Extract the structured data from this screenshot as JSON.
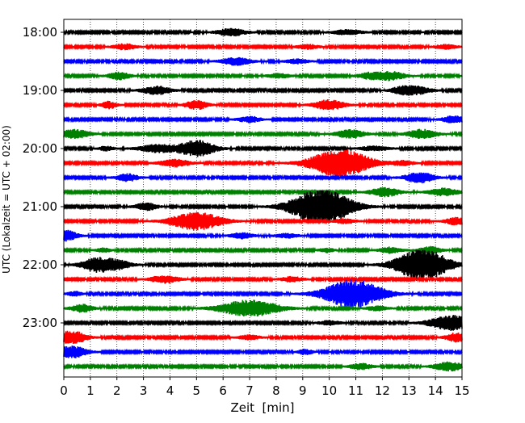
{
  "chart_data": {
    "type": "line",
    "title": "",
    "xlabel": "Zeit  [min]",
    "ylabel": "UTC (Lokalzeit = UTC + 02:00)",
    "xlim": [
      0,
      15
    ],
    "x_ticks": [
      "0",
      "1",
      "2",
      "3",
      "4",
      "5",
      "6",
      "7",
      "8",
      "9",
      "10",
      "11",
      "12",
      "13",
      "14",
      "15"
    ],
    "y_tick_labels": [
      "18:00",
      "19:00",
      "20:00",
      "21:00",
      "22:00",
      "23:00"
    ],
    "trace_interval_min": 15,
    "grid": {
      "x": true,
      "y": false
    },
    "trace_colors": [
      "#000000",
      "#ff0000",
      "#0000ff",
      "#008000"
    ],
    "traces": [
      {
        "start": "18:00",
        "bursts": [
          [
            6.3,
            0.4,
            0.5
          ],
          [
            10.7,
            0.4,
            0.35
          ]
        ]
      },
      {
        "start": "18:15",
        "bursts": [
          [
            2.3,
            0.3,
            0.4
          ],
          [
            9.2,
            0.3,
            0.3
          ],
          [
            14.4,
            0.3,
            0.3
          ]
        ]
      },
      {
        "start": "18:30",
        "bursts": [
          [
            6.5,
            0.4,
            0.5
          ],
          [
            8.8,
            0.3,
            0.3
          ]
        ]
      },
      {
        "start": "18:45",
        "bursts": [
          [
            2.1,
            0.3,
            0.5
          ],
          [
            8.1,
            0.3,
            0.3
          ],
          [
            11.5,
            0.3,
            0.4
          ],
          [
            12.3,
            0.4,
            0.6
          ]
        ]
      },
      {
        "start": "19:00",
        "bursts": [
          [
            3.5,
            0.4,
            0.55
          ],
          [
            12.7,
            0.3,
            0.4
          ],
          [
            13.3,
            0.4,
            0.5
          ]
        ]
      },
      {
        "start": "19:15",
        "bursts": [
          [
            1.7,
            0.2,
            0.5
          ],
          [
            5.0,
            0.3,
            0.6
          ],
          [
            10.0,
            0.4,
            0.7
          ]
        ]
      },
      {
        "start": "19:30",
        "bursts": [
          [
            7.0,
            0.3,
            0.4
          ],
          [
            14.7,
            0.3,
            0.5
          ]
        ]
      },
      {
        "start": "19:45",
        "bursts": [
          [
            0.4,
            0.4,
            0.6
          ],
          [
            10.8,
            0.4,
            0.55
          ],
          [
            13.5,
            0.4,
            0.6
          ]
        ]
      },
      {
        "start": "20:00",
        "bursts": [
          [
            1.6,
            0.2,
            0.3
          ],
          [
            3.5,
            0.5,
            0.5
          ],
          [
            5.0,
            0.5,
            1.1
          ],
          [
            11.7,
            0.4,
            0.3
          ]
        ]
      },
      {
        "start": "20:15",
        "bursts": [
          [
            4.2,
            0.4,
            0.5
          ],
          [
            10.4,
            0.8,
            1.9
          ],
          [
            12.8,
            0.3,
            0.3
          ]
        ]
      },
      {
        "start": "20:30",
        "bursts": [
          [
            2.4,
            0.3,
            0.5
          ],
          [
            13.4,
            0.4,
            0.7
          ]
        ]
      },
      {
        "start": "20:45",
        "bursts": [
          [
            12.1,
            0.4,
            0.6
          ],
          [
            14.3,
            0.4,
            0.5
          ]
        ]
      },
      {
        "start": "21:00",
        "bursts": [
          [
            3.1,
            0.3,
            0.5
          ],
          [
            9.7,
            0.8,
            2.5
          ]
        ]
      },
      {
        "start": "21:15",
        "bursts": [
          [
            5.0,
            0.7,
            1.2
          ],
          [
            10.6,
            0.3,
            0.3
          ],
          [
            14.8,
            0.3,
            0.5
          ]
        ]
      },
      {
        "start": "21:30",
        "bursts": [
          [
            0.1,
            0.3,
            0.7
          ],
          [
            6.7,
            0.3,
            0.4
          ],
          [
            8.4,
            0.3,
            0.3
          ]
        ]
      },
      {
        "start": "21:45",
        "bursts": [
          [
            1.5,
            0.2,
            0.3
          ],
          [
            9.9,
            0.2,
            0.3
          ],
          [
            12.3,
            0.3,
            0.4
          ],
          [
            13.8,
            0.3,
            0.5
          ]
        ]
      },
      {
        "start": "22:00",
        "bursts": [
          [
            1.2,
            0.4,
            0.9
          ],
          [
            2.0,
            0.4,
            0.6
          ],
          [
            13.5,
            0.7,
            2.2
          ]
        ]
      },
      {
        "start": "22:15",
        "bursts": [
          [
            3.8,
            0.4,
            0.5
          ],
          [
            8.6,
            0.3,
            0.35
          ]
        ]
      },
      {
        "start": "22:30",
        "bursts": [
          [
            0.4,
            0.2,
            0.3
          ],
          [
            10.9,
            0.8,
            1.9
          ]
        ]
      },
      {
        "start": "22:45",
        "bursts": [
          [
            0.7,
            0.3,
            0.5
          ],
          [
            7.0,
            0.8,
            1.1
          ],
          [
            11.8,
            0.3,
            0.3
          ]
        ]
      },
      {
        "start": "23:00",
        "bursts": [
          [
            10.0,
            0.3,
            0.3
          ],
          [
            14.6,
            0.6,
            1.0
          ]
        ]
      },
      {
        "start": "23:15",
        "bursts": [
          [
            0.3,
            0.4,
            0.9
          ],
          [
            14.8,
            0.3,
            0.6
          ],
          [
            7.0,
            0.3,
            0.3
          ]
        ]
      },
      {
        "start": "23:30",
        "bursts": [
          [
            0.3,
            0.4,
            0.8
          ],
          [
            9.1,
            0.2,
            0.35
          ]
        ]
      },
      {
        "start": "23:45",
        "bursts": [
          [
            11.2,
            0.3,
            0.4
          ],
          [
            14.5,
            0.4,
            0.6
          ]
        ]
      }
    ]
  }
}
